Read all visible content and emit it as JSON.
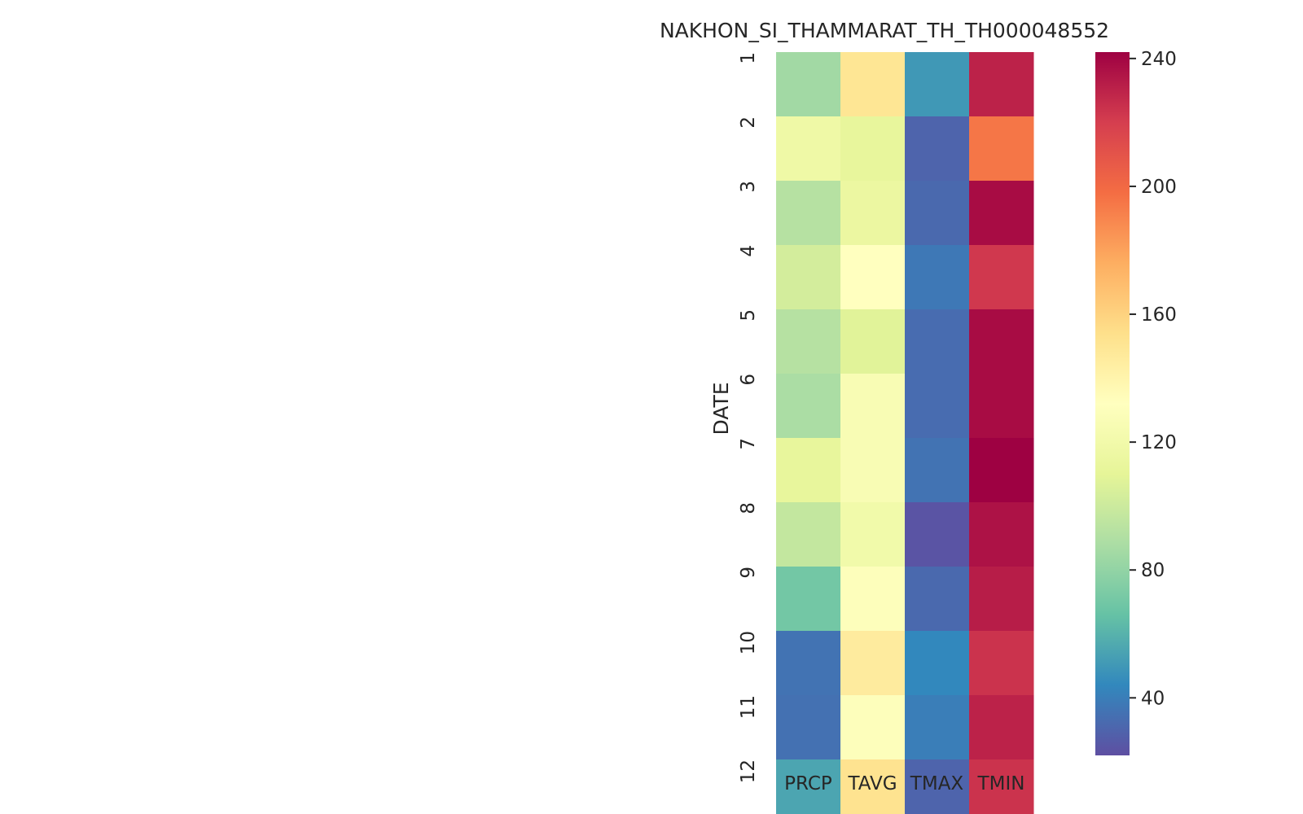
{
  "chart_data": {
    "type": "heatmap",
    "title": "NAKHON_SI_THAMMARAT_TH_TH000048552",
    "xlabel": "",
    "ylabel": "DATE",
    "columns": [
      "PRCP",
      "TAVG",
      "TMAX",
      "TMIN"
    ],
    "rows": [
      "1",
      "2",
      "3",
      "4",
      "5",
      "6",
      "7",
      "8",
      "9",
      "10",
      "11",
      "12"
    ],
    "values": [
      [
        85,
        150,
        50,
        230
      ],
      [
        118,
        112,
        30,
        195
      ],
      [
        92,
        115,
        32,
        238
      ],
      [
        103,
        132,
        38,
        222
      ],
      [
        92,
        108,
        33,
        238
      ],
      [
        88,
        126,
        33,
        238
      ],
      [
        112,
        126,
        36,
        246
      ],
      [
        97,
        120,
        24,
        236
      ],
      [
        70,
        130,
        32,
        232
      ],
      [
        36,
        146,
        44,
        224
      ],
      [
        35,
        130,
        40,
        230
      ],
      [
        55,
        152,
        30,
        224
      ]
    ],
    "colormap": "Spectral_r",
    "vmin": 22,
    "vmax": 242,
    "colorbar_ticks": [
      40,
      80,
      120,
      160,
      200,
      240
    ]
  }
}
